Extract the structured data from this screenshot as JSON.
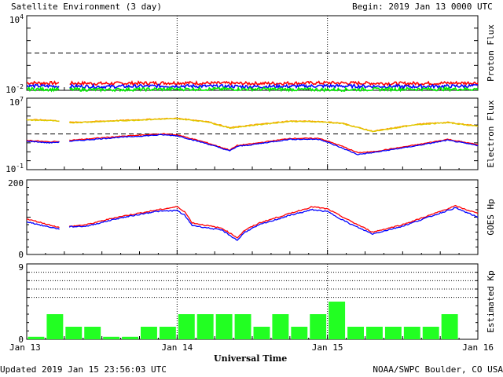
{
  "header": {
    "title": "Satellite Environment (3 day)",
    "begin": "Begin:  2019 Jan 13 0000 UTC"
  },
  "footer": {
    "updated": "Updated 2019 Jan 15 23:56:03 UTC",
    "credit": "NOAA/SWPC Boulder, CO USA",
    "xlabel": "Universal Time"
  },
  "x_ticks": [
    "Jan 13",
    "Jan 14",
    "Jan 15",
    "Jan 16"
  ],
  "colors": {
    "red": "#ff0000",
    "blue": "#0000ff",
    "green": "#00ee00",
    "orange": "#ff9900",
    "kp_bar": "#22ff22"
  },
  "chart_data": [
    {
      "type": "line",
      "ylabel": "Proton Flux",
      "yscale": "log",
      "ylim_exp": [
        -2,
        4
      ],
      "y_ticks": [
        "10^4",
        "10^-2"
      ],
      "x_unit": "day",
      "threshold_exp": 1,
      "gaps": [
        [
          0.22,
          0.28
        ]
      ],
      "series": [
        {
          "color": "red",
          "x": [
            0,
            0.5,
            1,
            1.5,
            2,
            2.5,
            3
          ],
          "y_exp": [
            -1.4,
            -1.45,
            -1.4,
            -1.45,
            -1.4,
            -1.45,
            -1.4
          ]
        },
        {
          "color": "blue",
          "x": [
            0,
            0.5,
            1,
            1.5,
            2,
            2.5,
            3
          ],
          "y_exp": [
            -1.65,
            -1.7,
            -1.65,
            -1.7,
            -1.65,
            -1.7,
            -1.65
          ]
        },
        {
          "color": "green",
          "x": [
            0,
            0.5,
            1,
            1.5,
            2,
            2.5,
            3
          ],
          "y_exp": [
            -1.9,
            -1.95,
            -1.9,
            -1.9,
            -1.95,
            -1.9,
            -1.9
          ]
        }
      ]
    },
    {
      "type": "line",
      "ylabel": "Electron Flux",
      "yscale": "log",
      "ylim_exp": [
        -1,
        7
      ],
      "y_ticks": [
        "10^7",
        "10^-1"
      ],
      "x_unit": "day",
      "threshold_exp": 3,
      "gaps": [
        [
          0.22,
          0.28
        ]
      ],
      "series": [
        {
          "color": "orange",
          "x": [
            0,
            0.15,
            0.3,
            0.6,
            0.9,
            1.0,
            1.2,
            1.35,
            1.5,
            1.75,
            1.95,
            2.1,
            2.3,
            2.6,
            2.8,
            3.0
          ],
          "y_exp": [
            4.6,
            4.55,
            4.3,
            4.5,
            4.7,
            4.75,
            4.4,
            3.7,
            4.0,
            4.45,
            4.4,
            4.2,
            3.3,
            4.1,
            4.3,
            3.9
          ]
        },
        {
          "color": "yellow",
          "x": [
            0,
            0.15,
            0.3,
            0.6,
            0.9,
            1.0,
            1.2,
            1.35,
            1.5,
            1.75,
            1.95,
            2.1,
            2.3,
            2.6,
            2.8,
            3.0
          ],
          "y_exp": [
            4.55,
            4.5,
            4.25,
            4.45,
            4.65,
            4.7,
            4.35,
            3.65,
            3.95,
            4.4,
            4.35,
            4.15,
            3.25,
            4.05,
            4.25,
            3.85
          ]
        },
        {
          "color": "red",
          "x": [
            0,
            0.15,
            0.3,
            0.6,
            0.9,
            1.0,
            1.2,
            1.35,
            1.4,
            1.5,
            1.75,
            1.95,
            2.1,
            2.2,
            2.3,
            2.6,
            2.8,
            3.0
          ],
          "y_exp": [
            2.3,
            2.1,
            2.3,
            2.7,
            3.0,
            2.9,
            2.0,
            1.2,
            1.7,
            1.9,
            2.5,
            2.5,
            1.6,
            0.9,
            1.0,
            1.8,
            2.4,
            1.8
          ]
        },
        {
          "color": "blue",
          "x": [
            0,
            0.15,
            0.3,
            0.6,
            0.9,
            1.0,
            1.2,
            1.35,
            1.4,
            1.5,
            1.75,
            1.95,
            2.1,
            2.2,
            2.3,
            2.6,
            2.8,
            3.0
          ],
          "y_exp": [
            2.2,
            2.0,
            2.2,
            2.6,
            2.9,
            2.8,
            1.9,
            1.1,
            1.6,
            1.8,
            2.4,
            2.4,
            1.4,
            0.7,
            0.9,
            1.7,
            2.3,
            1.7
          ]
        }
      ]
    },
    {
      "type": "line",
      "ylabel": "GOES Hp",
      "ylim": [
        0,
        200
      ],
      "y_ticks": [
        "200",
        "0"
      ],
      "x_unit": "day",
      "gaps": [
        [
          0.22,
          0.28
        ]
      ],
      "series": [
        {
          "color": "red",
          "x": [
            0,
            0.1,
            0.22,
            0.28,
            0.4,
            0.6,
            0.85,
            1.0,
            1.05,
            1.1,
            1.3,
            1.4,
            1.45,
            1.55,
            1.75,
            1.9,
            2.0,
            2.15,
            2.3,
            2.5,
            2.7,
            2.85,
            3.0
          ],
          "y": [
            95,
            85,
            72,
            75,
            80,
            100,
            118,
            128,
            115,
            85,
            70,
            45,
            65,
            85,
            110,
            128,
            122,
            90,
            60,
            80,
            108,
            130,
            110
          ]
        },
        {
          "color": "blue",
          "x": [
            0,
            0.1,
            0.22,
            0.28,
            0.4,
            0.6,
            0.85,
            1.0,
            1.05,
            1.1,
            1.3,
            1.4,
            1.45,
            1.55,
            1.75,
            1.9,
            2.0,
            2.15,
            2.3,
            2.5,
            2.7,
            2.85,
            3.0
          ],
          "y": [
            88,
            78,
            68,
            74,
            76,
            96,
            115,
            118,
            105,
            78,
            65,
            38,
            60,
            80,
            105,
            120,
            115,
            82,
            55,
            76,
            104,
            125,
            100
          ]
        }
      ]
    },
    {
      "type": "bar",
      "ylabel": "Estimated Kp",
      "ylim": [
        0,
        9
      ],
      "y_ticks": [
        "9",
        "0"
      ],
      "dotted_lines": [
        5,
        6,
        7,
        8
      ],
      "bar_width_hours": 3,
      "values": [
        0.3,
        3,
        1.5,
        1.5,
        0.3,
        0.3,
        1.5,
        1.5,
        3,
        3,
        3,
        3,
        1.5,
        3,
        1.5,
        3,
        4.5,
        1.5,
        1.5,
        1.5,
        1.5,
        1.5,
        3,
        0
      ]
    }
  ]
}
